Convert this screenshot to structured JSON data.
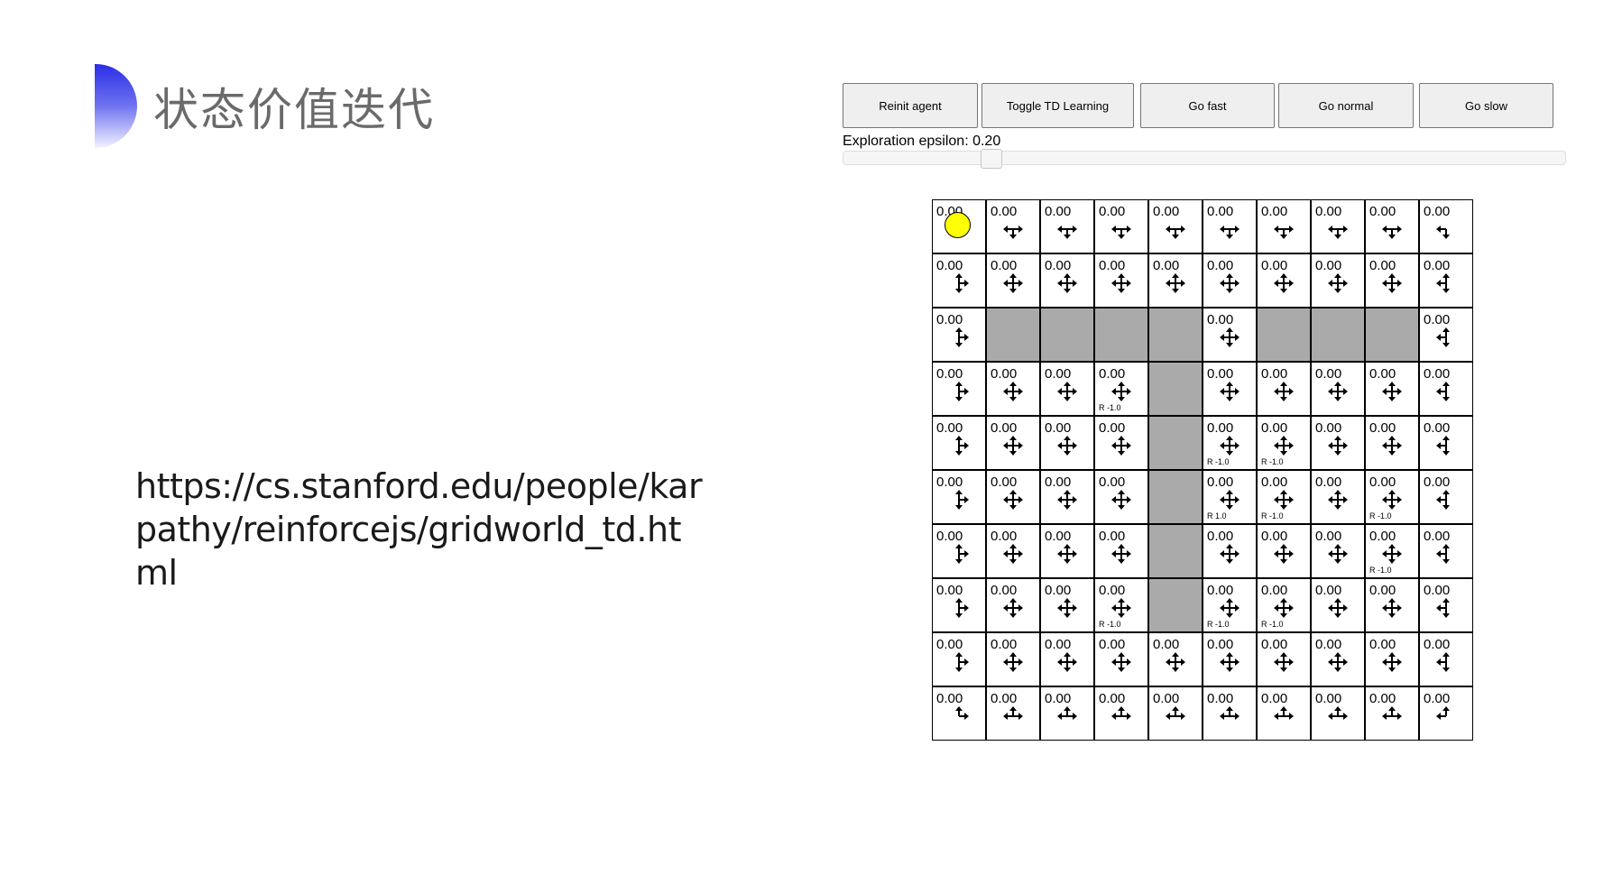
{
  "slide": {
    "title": "状态价值迭代",
    "url": "https://cs.stanford.edu/people/karpathy/reinforcejs/gridworld_td.html",
    "bullet_color": "#2a2ee6"
  },
  "controls": {
    "buttons": [
      "Reinit agent",
      "Toggle TD Learning",
      "Go fast",
      "Go normal",
      "Go slow"
    ],
    "epsilon_label": "Exploration epsilon: 0.20",
    "epsilon_value": 0.2
  },
  "grid": {
    "rows": 10,
    "cols": 10,
    "agent": [
      0,
      0
    ],
    "agent_color": "#ffff00",
    "wall_color": "#aaaaaa",
    "walls": [
      [
        2,
        1
      ],
      [
        2,
        2
      ],
      [
        2,
        3
      ],
      [
        2,
        4
      ],
      [
        2,
        6
      ],
      [
        2,
        7
      ],
      [
        2,
        8
      ],
      [
        3,
        4
      ],
      [
        4,
        4
      ],
      [
        5,
        4
      ],
      [
        6,
        4
      ],
      [
        7,
        4
      ]
    ],
    "rewards": [
      {
        "cell": [
          3,
          3
        ],
        "label": "R -1.0"
      },
      {
        "cell": [
          4,
          5
        ],
        "label": "R -1.0"
      },
      {
        "cell": [
          4,
          6
        ],
        "label": "R -1.0"
      },
      {
        "cell": [
          5,
          5
        ],
        "label": "R 1.0"
      },
      {
        "cell": [
          5,
          6
        ],
        "label": "R -1.0"
      },
      {
        "cell": [
          5,
          8
        ],
        "label": "R -1.0"
      },
      {
        "cell": [
          6,
          8
        ],
        "label": "R -1.0"
      },
      {
        "cell": [
          7,
          3
        ],
        "label": "R -1.0"
      },
      {
        "cell": [
          7,
          5
        ],
        "label": "R -1.0"
      },
      {
        "cell": [
          7,
          6
        ],
        "label": "R -1.0"
      }
    ],
    "value": "0.00",
    "policy": [
      [
        "",
        "lrd",
        "lrd",
        "lrd",
        "lrd",
        "lrd",
        "lrd",
        "lrd",
        "lrd",
        "ld"
      ],
      [
        "urd",
        "udlr",
        "udlr",
        "udlr",
        "udlr",
        "udlr",
        "udlr",
        "udlr",
        "udlr",
        "uld"
      ],
      [
        "urd",
        "",
        "",
        "",
        "",
        "udlr",
        "",
        "",
        "",
        "uld"
      ],
      [
        "urd",
        "udlr",
        "udlr",
        "udlr",
        "",
        "udlr",
        "udlr",
        "udlr",
        "udlr",
        "uld"
      ],
      [
        "urd",
        "udlr",
        "udlr",
        "udlr",
        "",
        "udlr",
        "udlr",
        "udlr",
        "udlr",
        "uld"
      ],
      [
        "urd",
        "udlr",
        "udlr",
        "udlr",
        "",
        "udlr",
        "udlr",
        "udlr",
        "udlr",
        "uld"
      ],
      [
        "urd",
        "udlr",
        "udlr",
        "udlr",
        "",
        "udlr",
        "udlr",
        "udlr",
        "udlr",
        "uld"
      ],
      [
        "urd",
        "udlr",
        "udlr",
        "udlr",
        "",
        "udlr",
        "udlr",
        "udlr",
        "udlr",
        "uld"
      ],
      [
        "urd",
        "udlr",
        "udlr",
        "udlr",
        "udlr",
        "udlr",
        "udlr",
        "udlr",
        "udlr",
        "uld"
      ],
      [
        "ur",
        "ulr",
        "ulr",
        "ulr",
        "ulr",
        "ulr",
        "ulr",
        "ulr",
        "ulr",
        "ul"
      ]
    ]
  }
}
